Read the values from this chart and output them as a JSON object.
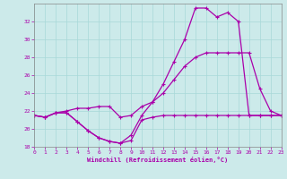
{
  "background_color": "#cceaea",
  "line_color": "#aa00aa",
  "xlabel": "Windchill (Refroidissement éolien,°C)",
  "xlim": [
    0,
    23
  ],
  "ylim": [
    18,
    34
  ],
  "yticks": [
    18,
    20,
    22,
    24,
    26,
    28,
    30,
    32
  ],
  "xticks": [
    0,
    1,
    2,
    3,
    4,
    5,
    6,
    7,
    8,
    9,
    10,
    11,
    12,
    13,
    14,
    15,
    16,
    17,
    18,
    19,
    20,
    21,
    22,
    23
  ],
  "line1_x": [
    0,
    1,
    2,
    3,
    4,
    5,
    6,
    7,
    8,
    9,
    10,
    11,
    12,
    13,
    14,
    15,
    16,
    17,
    18,
    19,
    20,
    21,
    22,
    23
  ],
  "line1_y": [
    21.5,
    21.3,
    21.8,
    21.8,
    20.8,
    19.8,
    19.0,
    18.6,
    18.4,
    18.7,
    21.0,
    21.3,
    21.5,
    21.5,
    21.5,
    21.5,
    21.5,
    21.5,
    21.5,
    21.5,
    21.5,
    21.5,
    21.5,
    21.5
  ],
  "line2_x": [
    0,
    1,
    2,
    3,
    4,
    5,
    6,
    7,
    8,
    9,
    10,
    11,
    12,
    13,
    14,
    15,
    16,
    17,
    18,
    19,
    20,
    21,
    22,
    23
  ],
  "line2_y": [
    21.5,
    21.3,
    21.8,
    22.0,
    22.3,
    22.3,
    22.5,
    22.5,
    21.3,
    21.5,
    22.5,
    23.0,
    24.0,
    25.5,
    27.0,
    28.0,
    28.5,
    28.5,
    28.5,
    28.5,
    28.5,
    24.5,
    22.0,
    21.5
  ],
  "line3_x": [
    0,
    1,
    2,
    3,
    4,
    5,
    6,
    7,
    8,
    9,
    10,
    11,
    12,
    13,
    14,
    15,
    16,
    17,
    18,
    19,
    20,
    21,
    22,
    23
  ],
  "line3_y": [
    21.5,
    21.3,
    21.8,
    21.8,
    20.8,
    19.8,
    19.0,
    18.6,
    18.4,
    19.3,
    21.5,
    23.0,
    25.0,
    27.5,
    30.0,
    33.5,
    33.5,
    32.5,
    33.0,
    32.0,
    21.5,
    21.5,
    21.5,
    21.5
  ]
}
